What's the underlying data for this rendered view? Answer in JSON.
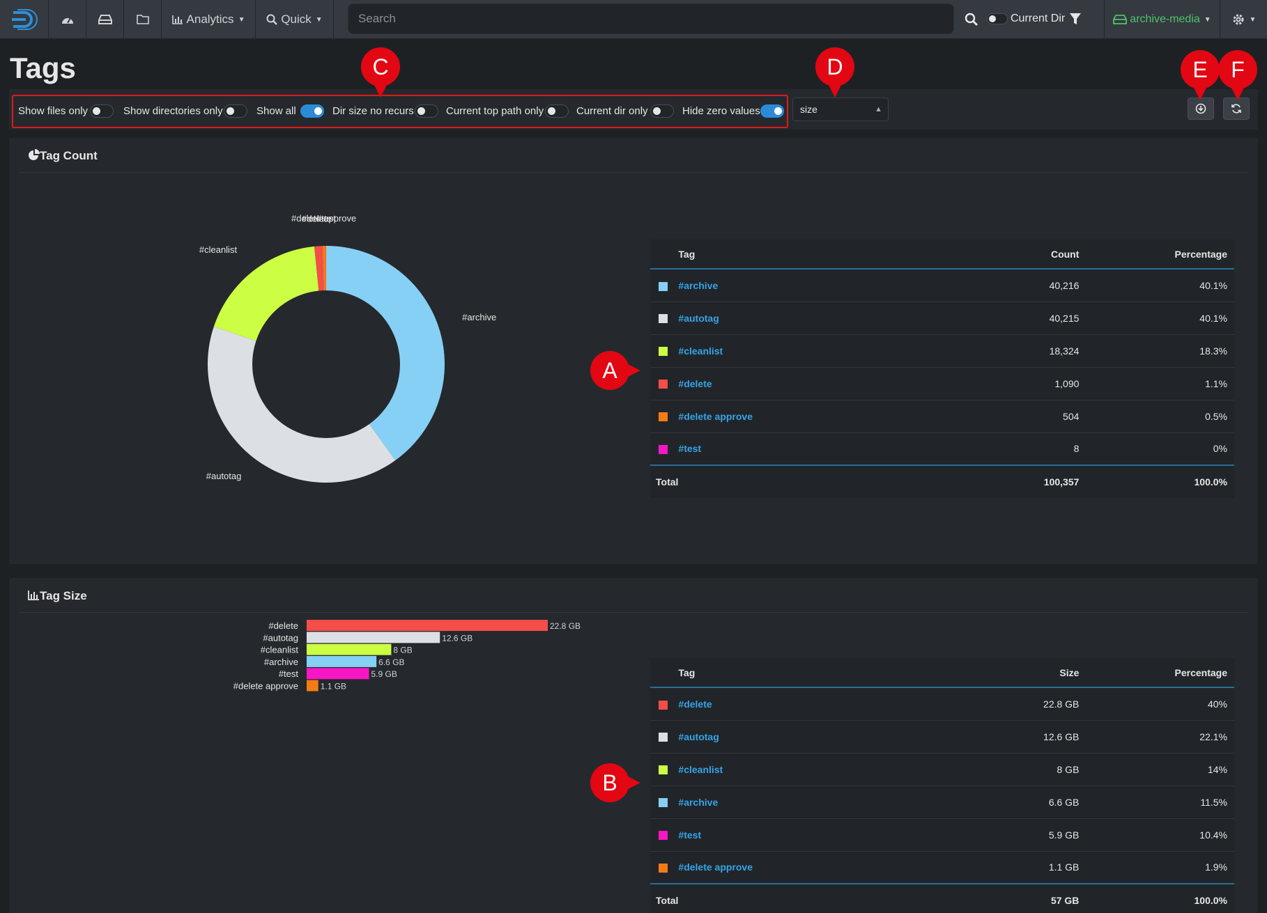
{
  "nav": {
    "analytics_label": "Analytics",
    "quick_label": "Quick",
    "search_placeholder": "Search",
    "current_dir_label": "Current Dir",
    "index_label": "archive-media"
  },
  "page": {
    "title": "Tags"
  },
  "filters": {
    "options": [
      {
        "label": "Show files only",
        "on": false
      },
      {
        "label": "Show directories only",
        "on": false
      },
      {
        "label": "Show all",
        "on": true
      },
      {
        "label": "Dir size no recurs",
        "on": false
      },
      {
        "label": "Current top path only",
        "on": false
      },
      {
        "label": "Current dir only",
        "on": false
      },
      {
        "label": "Hide zero values",
        "on": true
      }
    ],
    "sort_select": "size"
  },
  "markers": {
    "a": "A",
    "b": "B",
    "c": "C",
    "d": "D",
    "e": "E",
    "f": "F"
  },
  "colors": {
    "#archive": "#86d0f5",
    "#autotag": "#dcdfe3",
    "#cleanlist": "#ccff44",
    "#delete": "#f44d4a",
    "#delete approve": "#f47b16",
    "#test": "#f716c4",
    "accent": "#35a4e8",
    "marker": "#e30613"
  },
  "tag_count": {
    "title": "Tag Count",
    "headers": {
      "tag": "Tag",
      "value": "Count",
      "pct": "Percentage"
    },
    "rows": [
      {
        "tag": "#archive",
        "value": "40,216",
        "pct": "40.1%"
      },
      {
        "tag": "#autotag",
        "value": "40,215",
        "pct": "40.1%"
      },
      {
        "tag": "#cleanlist",
        "value": "18,324",
        "pct": "18.3%"
      },
      {
        "tag": "#delete",
        "value": "1,090",
        "pct": "1.1%"
      },
      {
        "tag": "#delete approve",
        "value": "504",
        "pct": "0.5%"
      },
      {
        "tag": "#test",
        "value": "8",
        "pct": "0%"
      }
    ],
    "total": {
      "label": "Total",
      "value": "100,357",
      "pct": "100.0%"
    }
  },
  "tag_size": {
    "title": "Tag Size",
    "headers": {
      "tag": "Tag",
      "value": "Size",
      "pct": "Percentage"
    },
    "rows": [
      {
        "tag": "#delete",
        "value": "22.8 GB",
        "pct": "40%"
      },
      {
        "tag": "#autotag",
        "value": "12.6 GB",
        "pct": "22.1%"
      },
      {
        "tag": "#cleanlist",
        "value": "8 GB",
        "pct": "14%"
      },
      {
        "tag": "#archive",
        "value": "6.6 GB",
        "pct": "11.5%"
      },
      {
        "tag": "#test",
        "value": "5.9 GB",
        "pct": "10.4%"
      },
      {
        "tag": "#delete approve",
        "value": "1.1 GB",
        "pct": "1.9%"
      }
    ],
    "total": {
      "label": "Total",
      "value": "57 GB",
      "pct": "100.0%"
    }
  },
  "chart_data": [
    {
      "type": "pie",
      "title": "Tag Count",
      "donut": true,
      "categories": [
        "#archive",
        "#autotag",
        "#cleanlist",
        "#delete",
        "#delete approve",
        "#test"
      ],
      "values": [
        40216,
        40215,
        18324,
        1090,
        504,
        8
      ],
      "slice_labels": [
        "#archive",
        "#autotag",
        "#cleanlist",
        "#delete",
        "#delete approve",
        "#test"
      ],
      "colors": [
        "#86d0f5",
        "#dcdfe3",
        "#ccff44",
        "#f44d4a",
        "#f47b16",
        "#f716c4"
      ]
    },
    {
      "type": "bar",
      "orientation": "horizontal",
      "title": "Tag Size",
      "categories": [
        "#delete",
        "#autotag",
        "#cleanlist",
        "#archive",
        "#test",
        "#delete approve"
      ],
      "values": [
        22.8,
        12.6,
        8,
        6.6,
        5.9,
        1.1
      ],
      "value_labels": [
        "22.8 GB",
        "12.6 GB",
        "8 GB",
        "6.6 GB",
        "5.9 GB",
        "1.1 GB"
      ],
      "unit": "GB",
      "colors": [
        "#f44d4a",
        "#dcdfe3",
        "#ccff44",
        "#86d0f5",
        "#f716c4",
        "#f47b16"
      ]
    }
  ]
}
